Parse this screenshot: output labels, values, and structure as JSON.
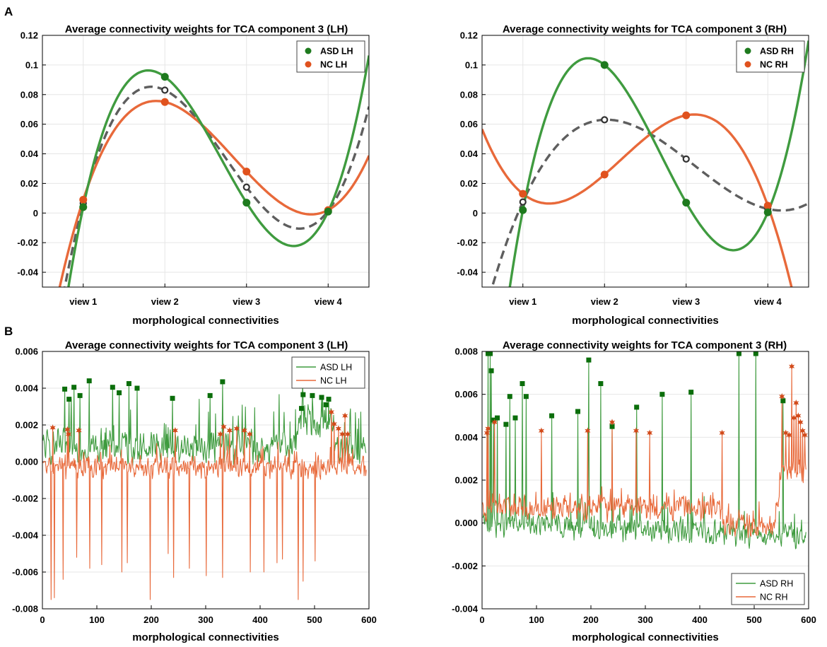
{
  "panel_labels": [
    "A",
    "B"
  ],
  "colors": {
    "asd": "#3f9b3f",
    "nc": "#e8693a",
    "mean": "#5e5e5e",
    "asd_marker": "#0b6e0b",
    "nc_marker": "#d24a1a",
    "grid": "#e6e6e6"
  },
  "chart_data": [
    {
      "id": "A-LH",
      "type": "line",
      "title": "Average connectivity weights for TCA component 3 (LH)",
      "xlabel": "morphological connectivities",
      "ylabel": "",
      "categories": [
        "view 1",
        "view 2",
        "view 3",
        "view 4"
      ],
      "xlim": [
        0.5,
        4.5
      ],
      "ylim": [
        -0.05,
        0.12
      ],
      "yticks": [
        -0.04,
        -0.02,
        0,
        0.02,
        0.04,
        0.06,
        0.08,
        0.1,
        0.12
      ],
      "ytick_labels": [
        "-0.04",
        "-0.02",
        "0",
        "0.02",
        "0.04",
        "0.06",
        "0.08",
        "0.1",
        "0.12"
      ],
      "legend": {
        "placement": "top-right",
        "entries": [
          "ASD LH",
          "NC LH"
        ]
      },
      "series": [
        {
          "name": "ASD LH",
          "values": [
            0.004,
            0.092,
            0.007,
            0.001
          ]
        },
        {
          "name": "NC LH",
          "values": [
            0.009,
            0.075,
            0.028,
            0.002
          ]
        },
        {
          "name": "mean",
          "values": [
            0.0065,
            0.083,
            0.0175,
            0.0015
          ]
        }
      ]
    },
    {
      "id": "A-RH",
      "type": "line",
      "title": "Average connectivity weights for TCA component 3 (RH)",
      "xlabel": "morphological connectivities",
      "ylabel": "",
      "categories": [
        "view 1",
        "view 2",
        "view 3",
        "view 4"
      ],
      "xlim": [
        0.5,
        4.5
      ],
      "ylim": [
        -0.05,
        0.12
      ],
      "yticks": [
        -0.04,
        -0.02,
        0,
        0.02,
        0.04,
        0.06,
        0.08,
        0.1,
        0.12
      ],
      "ytick_labels": [
        "-0.04",
        "-0.02",
        "0",
        "0.02",
        "0.04",
        "0.06",
        "0.08",
        "0.1",
        "0.12"
      ],
      "legend": {
        "placement": "top-right",
        "entries": [
          "ASD RH",
          "NC RH"
        ]
      },
      "series": [
        {
          "name": "ASD RH",
          "values": [
            0.002,
            0.1,
            0.007,
            0.0005
          ]
        },
        {
          "name": "NC RH",
          "values": [
            0.013,
            0.026,
            0.066,
            0.005
          ]
        },
        {
          "name": "mean",
          "values": [
            0.0075,
            0.063,
            0.0365,
            0.0028
          ]
        }
      ]
    },
    {
      "id": "B-LH",
      "type": "line",
      "title": "Average connectivity weights for TCA component 3 (LH)",
      "xlabel": "morphological connectivities",
      "ylabel": "",
      "xlim": [
        0,
        600
      ],
      "ylim": [
        -0.008,
        0.006
      ],
      "xticks": [
        0,
        100,
        200,
        300,
        400,
        500,
        600
      ],
      "xtick_labels": [
        "0",
        "100",
        "200",
        "300",
        "400",
        "500",
        "600"
      ],
      "yticks": [
        -0.008,
        -0.006,
        -0.004,
        -0.002,
        0,
        0.002,
        0.004,
        0.006
      ],
      "ytick_labels": [
        "-0.008",
        "-0.006",
        "-0.004",
        "-0.002",
        "0.000",
        "0.002",
        "0.004",
        "0.006"
      ],
      "legend": {
        "placement": "top-right",
        "entries": [
          "ASD LH",
          "NC LH"
        ]
      },
      "n_points": 595,
      "series": [
        {
          "name": "ASD LH",
          "baseline": 0.0008,
          "noise": 0.0011,
          "peaks": [
            [
              40,
              0.00395
            ],
            [
              48,
              0.0034
            ],
            [
              57,
              0.00405
            ],
            [
              68,
              0.0036
            ],
            [
              85,
              0.0044
            ],
            [
              128,
              0.00405
            ],
            [
              140,
              0.00375
            ],
            [
              158,
              0.00425
            ],
            [
              173,
              0.004
            ],
            [
              238,
              0.00345
            ],
            [
              307,
              0.0036
            ],
            [
              330,
              0.00435
            ],
            [
              478,
              0.00365
            ],
            [
              495,
              0.0036
            ],
            [
              512,
              0.0035
            ],
            [
              525,
              0.0034
            ],
            [
              475,
              0.0029
            ],
            [
              520,
              0.0031
            ]
          ]
        },
        {
          "name": "NC LH",
          "baseline": -0.0003,
          "noise": 0.0007,
          "peaks": [
            [
              18,
              0.00185
            ],
            [
              45,
              0.00175
            ],
            [
              47,
              0.0015
            ],
            [
              66,
              0.0017
            ],
            [
              243,
              0.0017
            ],
            [
              326,
              0.0015
            ],
            [
              332,
              0.0019
            ],
            [
              343,
              0.0017
            ],
            [
              356,
              0.0018
            ],
            [
              370,
              0.0017
            ],
            [
              380,
              0.0015
            ],
            [
              530,
              0.0027
            ],
            [
              535,
              0.00205
            ],
            [
              543,
              0.0018
            ],
            [
              550,
              0.0015
            ],
            [
              555,
              0.0025
            ],
            [
              560,
              0.0015
            ]
          ],
          "dips": [
            [
              15,
              -0.0075
            ],
            [
              21,
              -0.0074
            ],
            [
              197,
              -0.0075
            ],
            [
              469,
              -0.0075
            ],
            [
              478,
              -0.0065
            ],
            [
              300,
              -0.0062
            ],
            [
              240,
              -0.0063
            ],
            [
              86,
              -0.0058
            ],
            [
              108,
              -0.0056
            ],
            [
              145,
              -0.006
            ],
            [
              155,
              -0.0055
            ],
            [
              230,
              -0.005
            ],
            [
              269,
              -0.0058
            ],
            [
              381,
              -0.006
            ],
            [
              406,
              -0.006
            ],
            [
              430,
              -0.0055
            ],
            [
              440,
              -0.0053
            ],
            [
              62,
              -0.0052
            ],
            [
              37,
              -0.0064
            ],
            [
              500,
              -0.0054
            ],
            [
              330,
              -0.0063
            ]
          ]
        }
      ]
    },
    {
      "id": "B-RH",
      "type": "line",
      "title": "Average connectivity weights for TCA component 3 (RH)",
      "xlabel": "morphological connectivities",
      "ylabel": "",
      "xlim": [
        0,
        600
      ],
      "ylim": [
        -0.004,
        0.008
      ],
      "xticks": [
        0,
        100,
        200,
        300,
        400,
        500,
        600
      ],
      "xtick_labels": [
        "0",
        "100",
        "200",
        "300",
        "400",
        "500",
        "600"
      ],
      "yticks": [
        -0.004,
        -0.002,
        0,
        0.002,
        0.004,
        0.006,
        0.008
      ],
      "ytick_labels": [
        "-0.004",
        "-0.002",
        "0.000",
        "0.002",
        "0.004",
        "0.006",
        "0.008"
      ],
      "legend": {
        "placement": "bottom-right",
        "entries": [
          "ASD RH",
          "NC RH"
        ]
      },
      "n_points": 595,
      "series": [
        {
          "name": "ASD RH",
          "baseline": 0.0,
          "noise": 0.0007,
          "peaks": [
            [
              10,
              0.0079
            ],
            [
              14,
              0.0079
            ],
            [
              16,
              0.0071
            ],
            [
              20,
              0.0048
            ],
            [
              27,
              0.0049
            ],
            [
              43,
              0.0046
            ],
            [
              50,
              0.0059
            ],
            [
              60,
              0.0049
            ],
            [
              73,
              0.0065
            ],
            [
              80,
              0.0059
            ],
            [
              127,
              0.005
            ],
            [
              175,
              0.0052
            ],
            [
              195,
              0.0076
            ],
            [
              217,
              0.0065
            ],
            [
              238,
              0.0045
            ],
            [
              283,
              0.0054
            ],
            [
              330,
              0.006
            ],
            [
              383,
              0.0061
            ],
            [
              471,
              0.0079
            ],
            [
              502,
              0.0079
            ],
            [
              552,
              0.0057
            ]
          ]
        },
        {
          "name": "NC RH",
          "baseline": 0.0007,
          "noise": 0.0007,
          "peaks": [
            [
              8,
              0.0042
            ],
            [
              10,
              0.0044
            ],
            [
              22,
              0.0047
            ],
            [
              108,
              0.0043
            ],
            [
              193,
              0.0043
            ],
            [
              238,
              0.0047
            ],
            [
              282,
              0.0043
            ],
            [
              307,
              0.0042
            ],
            [
              440,
              0.0042
            ],
            [
              550,
              0.0059
            ],
            [
              557,
              0.0042
            ],
            [
              563,
              0.0041
            ],
            [
              568,
              0.0073
            ],
            [
              572,
              0.0049
            ],
            [
              576,
              0.0056
            ],
            [
              580,
              0.005
            ],
            [
              584,
              0.0047
            ],
            [
              588,
              0.0043
            ],
            [
              592,
              0.0041
            ]
          ]
        }
      ]
    }
  ]
}
